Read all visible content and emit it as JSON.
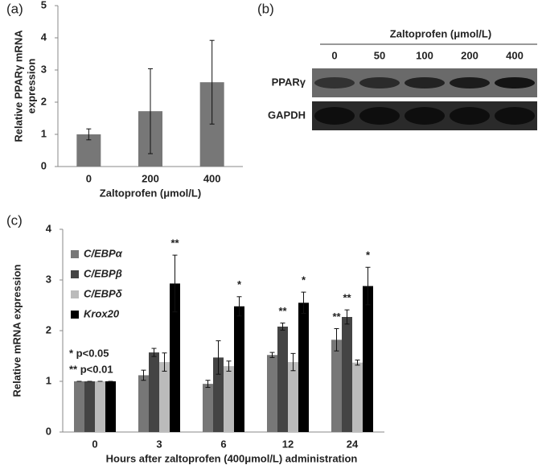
{
  "chart_data": [
    {
      "type": "bar",
      "panel_label": "(a)",
      "ylabel": [
        "Relative PPARγ mRNA",
        "expression"
      ],
      "xlabel": "Zaltoprofen (μmol/L)",
      "categories": [
        "0",
        "200",
        "400"
      ],
      "values": [
        1.0,
        1.72,
        2.62
      ],
      "errors": [
        0.17,
        1.32,
        1.3
      ],
      "color": "#777777",
      "ylim": [
        0,
        5
      ],
      "yticks": [
        0,
        1,
        2,
        3,
        4,
        5
      ]
    },
    {
      "type": "blot",
      "panel_label": "(b)",
      "title": "Zaltoprofen (μmol/L)",
      "lanes": [
        "0",
        "50",
        "100",
        "200",
        "400"
      ],
      "rows": [
        "PPARγ",
        "GAPDH"
      ]
    },
    {
      "type": "bar",
      "panel_label": "(c)",
      "ylabel": [
        "Relative mRNA expression"
      ],
      "xlabel": "Hours after zaltoprofen (400μmol/L) administration",
      "categories": [
        "0",
        "3",
        "6",
        "12",
        "24"
      ],
      "series": [
        {
          "name": "C/EBPα",
          "color": "#777777",
          "values": [
            1,
            1.12,
            0.95,
            1.52,
            1.82
          ],
          "errors": [
            0,
            0.1,
            0.07,
            0.05,
            0.22
          ],
          "significance": [
            null,
            null,
            null,
            null,
            "**"
          ]
        },
        {
          "name": "C/EBPβ",
          "color": "#444444",
          "values": [
            1,
            1.57,
            1.47,
            2.08,
            2.27
          ],
          "errors": [
            0,
            0.08,
            0.33,
            0.07,
            0.14
          ],
          "significance": [
            null,
            null,
            null,
            "**",
            "**"
          ]
        },
        {
          "name": "C/EBPδ",
          "color": "#bbbbbb",
          "values": [
            1,
            1.38,
            1.3,
            1.38,
            1.37
          ],
          "errors": [
            0,
            0.18,
            0.1,
            0.17,
            0.05
          ],
          "significance": [
            null,
            null,
            null,
            null,
            null
          ]
        },
        {
          "name": "Krox20",
          "color": "#000000",
          "values": [
            1,
            2.93,
            2.48,
            2.55,
            2.88
          ],
          "errors": [
            0,
            0.56,
            0.19,
            0.21,
            0.37
          ],
          "significance": [
            null,
            "**",
            "*",
            "*",
            "*"
          ]
        }
      ],
      "annotations": [
        "* p<0.05",
        "** p<0.01"
      ],
      "ylim": [
        0,
        4
      ],
      "yticks": [
        0,
        1,
        2,
        3,
        4
      ]
    }
  ]
}
